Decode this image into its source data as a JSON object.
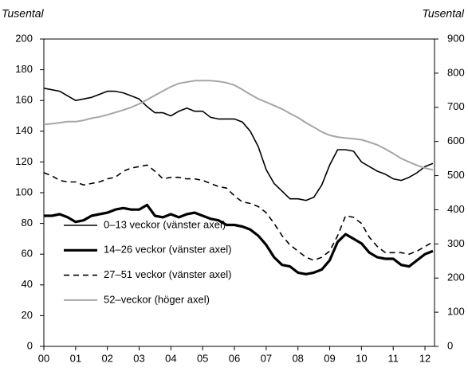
{
  "chart_data": {
    "type": "line",
    "y_label": "Tusental",
    "y2_label": "Tusental",
    "x": [
      2000,
      2000.25,
      2000.5,
      2000.75,
      2001,
      2001.25,
      2001.5,
      2001.75,
      2002,
      2002.25,
      2002.5,
      2002.75,
      2003,
      2003.25,
      2003.5,
      2003.75,
      2004,
      2004.25,
      2004.5,
      2004.75,
      2005,
      2005.25,
      2005.5,
      2005.75,
      2006,
      2006.25,
      2006.5,
      2006.75,
      2007,
      2007.25,
      2007.5,
      2007.75,
      2008,
      2008.25,
      2008.5,
      2008.75,
      2009,
      2009.25,
      2009.5,
      2009.75,
      2010,
      2010.25,
      2010.5,
      2010.75,
      2011,
      2011.25,
      2011.5,
      2011.75,
      2012,
      2012.25
    ],
    "series": [
      {
        "name": "0–13 veckor (vänster axel)",
        "color": "#000000",
        "values": [
          168,
          167,
          166,
          163,
          160,
          161,
          162,
          164,
          166,
          166,
          165,
          163,
          161,
          156,
          152,
          152,
          150,
          153,
          155,
          153,
          153,
          149,
          148,
          148,
          148,
          146,
          140,
          130,
          115,
          106,
          101,
          96,
          96,
          95,
          97,
          105,
          118,
          128,
          128,
          127,
          120,
          117,
          114,
          112,
          109,
          108,
          110,
          113,
          117,
          119
        ]
      },
      {
        "name": "14–26 veckor (vänster axel)",
        "color": "#000000",
        "values": [
          85,
          85,
          86,
          84,
          81,
          82,
          85,
          86,
          87,
          89,
          90,
          89,
          89,
          92,
          85,
          84,
          86,
          84,
          86,
          87,
          85,
          83,
          82,
          79,
          79,
          78,
          76,
          72,
          66,
          58,
          53,
          52,
          48,
          47,
          48,
          50,
          56,
          68,
          73,
          70,
          67,
          61,
          58,
          57,
          57,
          53,
          52,
          56,
          60,
          62
        ]
      },
      {
        "name": "27–51 veckor (vänster axel)",
        "color": "#000000",
        "linestyle": "dashed",
        "values": [
          113,
          111,
          108,
          107,
          107,
          105,
          106,
          107,
          109,
          110,
          114,
          116,
          117,
          118,
          114,
          109,
          110,
          110,
          109,
          109,
          108,
          106,
          104,
          103,
          98,
          94,
          93,
          91,
          87,
          80,
          72,
          66,
          62,
          58,
          56,
          58,
          62,
          72,
          85,
          84,
          80,
          71,
          65,
          61,
          61,
          61,
          60,
          62,
          65,
          68
        ]
      },
      {
        "name": "52–veckor (höger axel)",
        "color": "#a6a6a6",
        "axis": "y2",
        "values": [
          650,
          652,
          655,
          658,
          658,
          662,
          668,
          672,
          678,
          685,
          692,
          700,
          710,
          722,
          735,
          748,
          760,
          770,
          774,
          778,
          778,
          778,
          776,
          772,
          765,
          752,
          738,
          725,
          715,
          705,
          695,
          682,
          670,
          655,
          642,
          628,
          618,
          613,
          610,
          608,
          605,
          598,
          590,
          578,
          565,
          550,
          540,
          530,
          522,
          517
        ]
      }
    ],
    "xlim": [
      2000,
      2012.3
    ],
    "xticks": [
      {
        "value": 2000,
        "label": "00"
      },
      {
        "value": 2001,
        "label": "01"
      },
      {
        "value": 2002,
        "label": "02"
      },
      {
        "value": 2003,
        "label": "03"
      },
      {
        "value": 2004,
        "label": "04"
      },
      {
        "value": 2005,
        "label": "05"
      },
      {
        "value": 2006,
        "label": "06"
      },
      {
        "value": 2007,
        "label": "07"
      },
      {
        "value": 2008,
        "label": "08"
      },
      {
        "value": 2009,
        "label": "09"
      },
      {
        "value": 2010,
        "label": "10"
      },
      {
        "value": 2011,
        "label": "11"
      },
      {
        "value": 2012,
        "label": "12"
      }
    ],
    "ylim": [
      0,
      200
    ],
    "yticks": [
      0,
      20,
      40,
      60,
      80,
      100,
      120,
      140,
      160,
      180,
      200
    ],
    "y2lim": [
      0,
      900
    ],
    "y2ticks": [
      0,
      100,
      200,
      300,
      400,
      500,
      600,
      700,
      800,
      900
    ],
    "legend": "lower left"
  }
}
